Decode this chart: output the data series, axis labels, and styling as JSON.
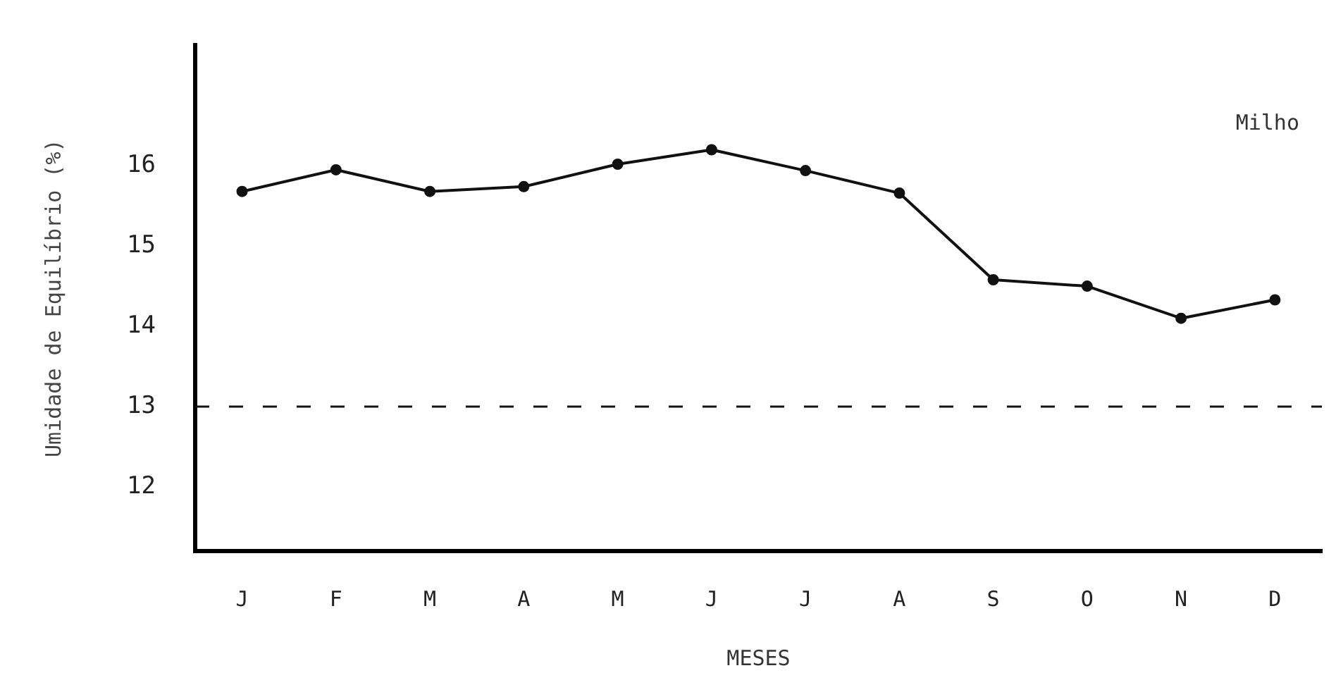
{
  "chart_data": {
    "type": "line",
    "xlabel": "MESES",
    "ylabel": "Umidade de Equilíbrio (%)",
    "categories": [
      "J",
      "F",
      "M",
      "A",
      "M",
      "J",
      "J",
      "A",
      "S",
      "O",
      "N",
      "D"
    ],
    "series": [
      {
        "color": "#111111",
        "values": [
          15.68,
          15.95,
          15.68,
          15.74,
          16.02,
          16.2,
          15.94,
          15.66,
          14.58,
          14.5,
          14.1,
          14.33
        ]
      }
    ],
    "ylim": [
      11.2,
      17.5
    ],
    "yticks": [
      12,
      13,
      14,
      15,
      16
    ],
    "ref_lines": [
      {
        "axis": "y",
        "value": 13,
        "color": "#111111",
        "line_style": "dashed"
      }
    ],
    "annotations": [
      "Milho"
    ],
    "grid": false,
    "legend": false,
    "marker": "circle",
    "line_style": "solid"
  }
}
